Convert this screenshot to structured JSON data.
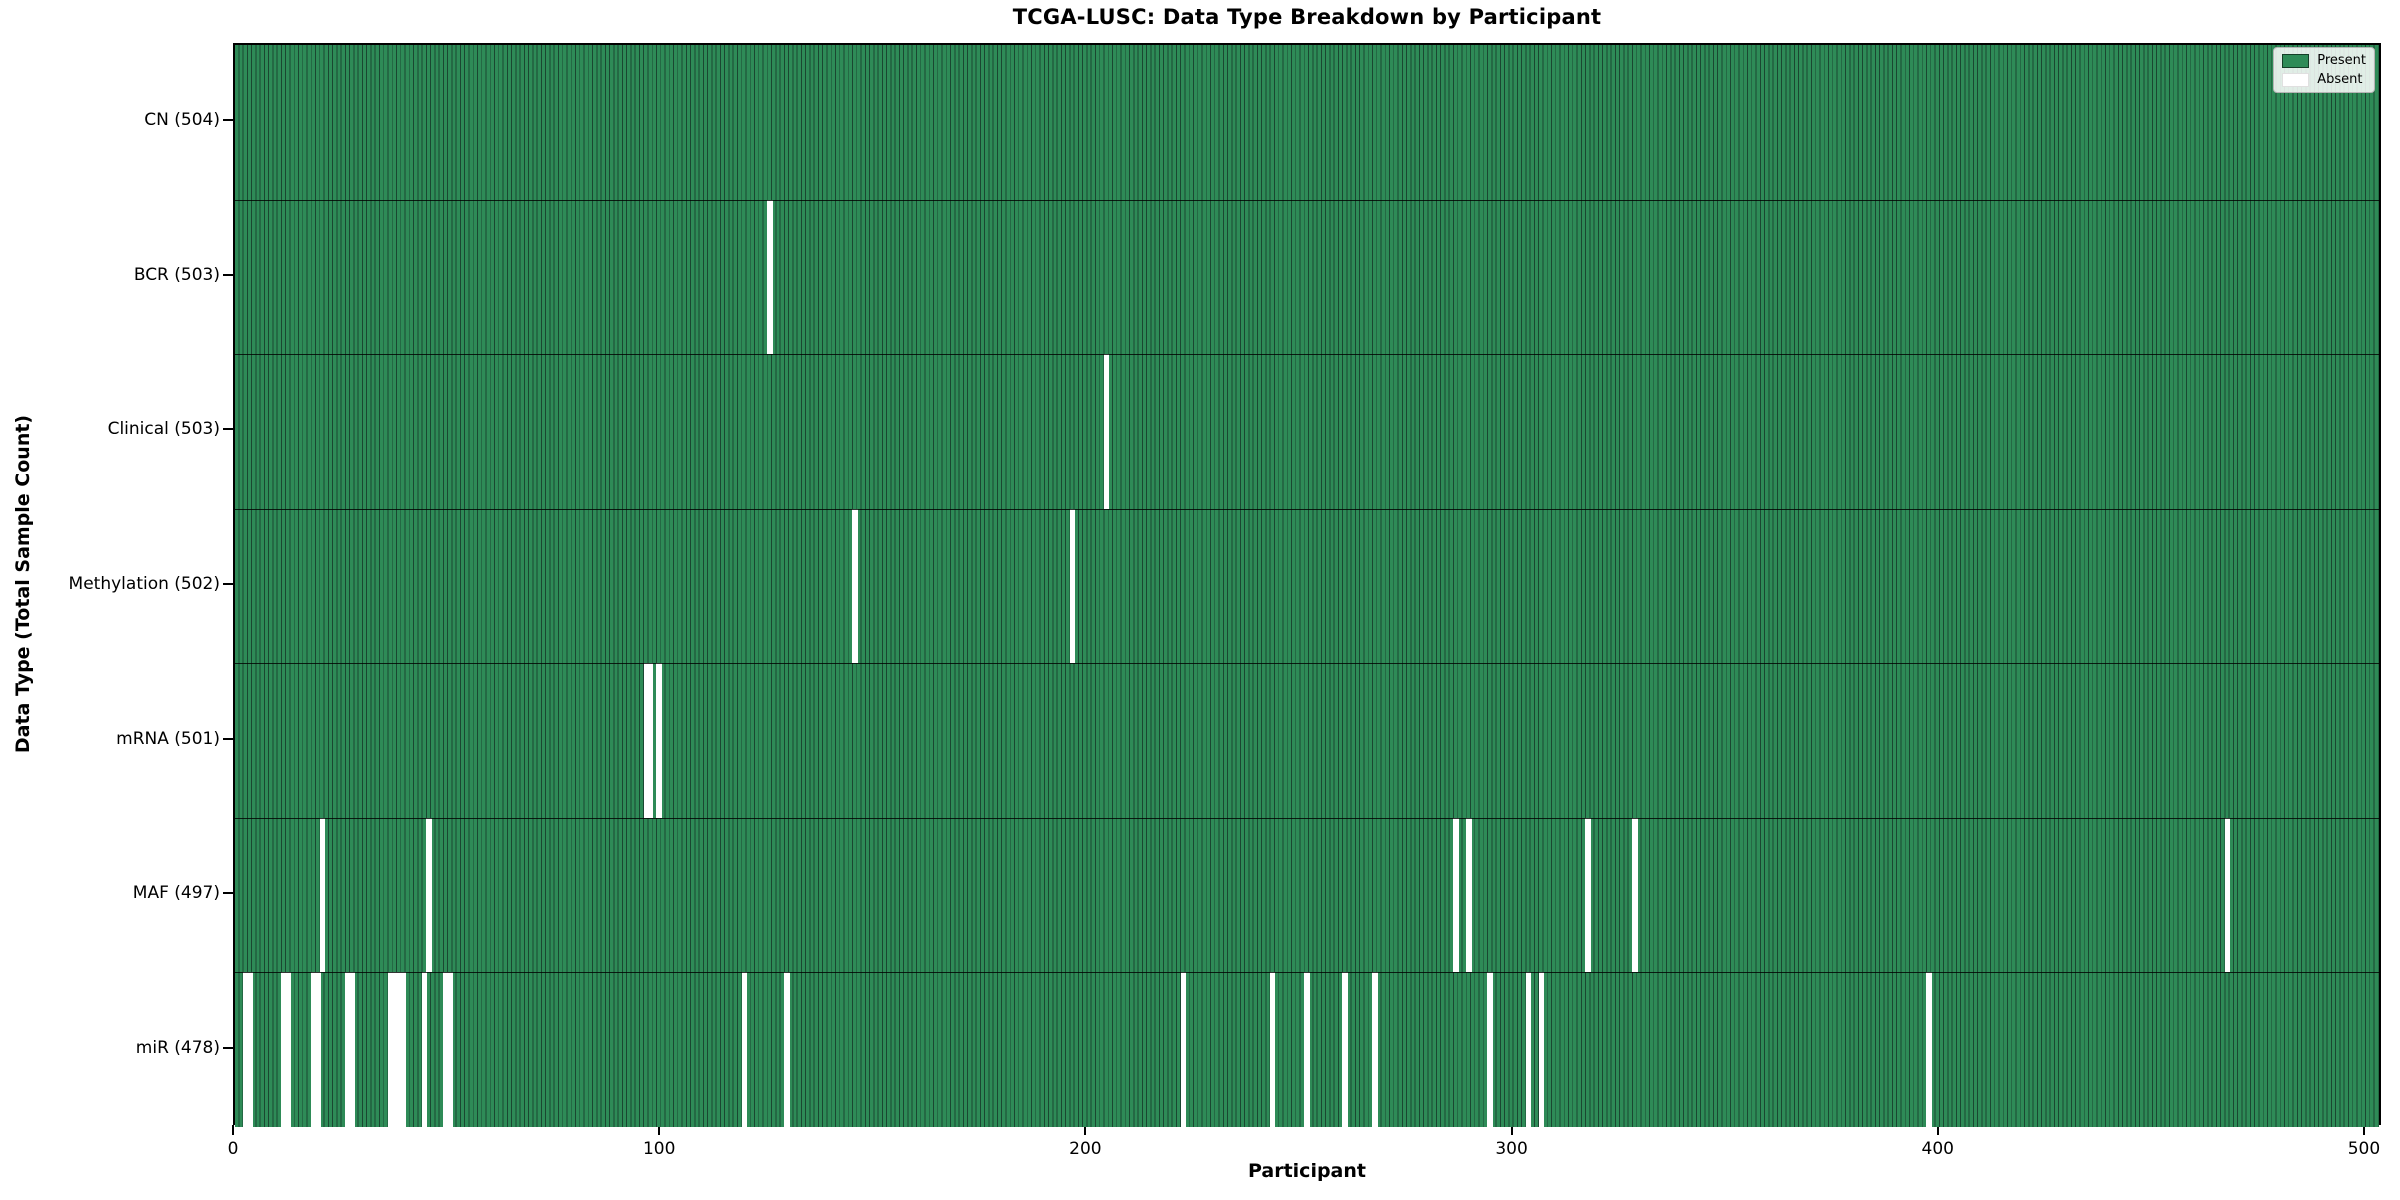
{
  "title": "TCGA-LUSC: Data Type Breakdown by Participant",
  "xlabel": "Participant",
  "ylabel": "Data Type (Total Sample Count)",
  "legend": {
    "items": [
      {
        "label": "Present",
        "color": "#2e8b57"
      },
      {
        "label": "Absent",
        "color": "#ffffff"
      }
    ],
    "position": "upper right"
  },
  "colors": {
    "present": "#2e8b57",
    "cell_edge": "#1a4731",
    "absent": "#ffffff",
    "axis": "#000000",
    "background": "#ffffff"
  },
  "chart_data": {
    "type": "heatmap",
    "title": "TCGA-LUSC: Data Type Breakdown by Participant",
    "xlabel": "Participant",
    "ylabel": "Data Type (Total Sample Count)",
    "x_range": [
      0,
      504
    ],
    "x_ticks": [
      0,
      100,
      200,
      300,
      400,
      500
    ],
    "n_participants": 504,
    "grid": false,
    "legend_position": "upper right",
    "present_color": "#2e8b57",
    "cell_edge_color": "#1a4731",
    "absent_color": "#ffffff",
    "rows": [
      {
        "label": "CN (504)",
        "data_type": "CN",
        "total": 504,
        "absent_participants": []
      },
      {
        "label": "BCR (503)",
        "data_type": "BCR",
        "total": 503,
        "absent_participants": [
          125
        ]
      },
      {
        "label": "Clinical (503)",
        "data_type": "Clinical",
        "total": 503,
        "absent_participants": [
          204
        ]
      },
      {
        "label": "Methylation (502)",
        "data_type": "Methylation",
        "total": 502,
        "absent_participants": [
          145,
          196
        ]
      },
      {
        "label": "mRNA (501)",
        "data_type": "mRNA",
        "total": 501,
        "absent_participants": [
          96,
          97,
          99
        ]
      },
      {
        "label": "MAF (497)",
        "data_type": "MAF",
        "total": 497,
        "absent_participants": [
          20,
          45,
          286,
          289,
          317,
          328,
          467
        ]
      },
      {
        "label": "miR (478)",
        "data_type": "miR",
        "total": 478,
        "absent_participants": [
          2,
          3,
          11,
          12,
          18,
          19,
          26,
          27,
          36,
          37,
          38,
          39,
          44,
          49,
          50,
          119,
          129,
          222,
          243,
          251,
          260,
          267,
          294,
          303,
          306,
          397
        ]
      }
    ]
  }
}
